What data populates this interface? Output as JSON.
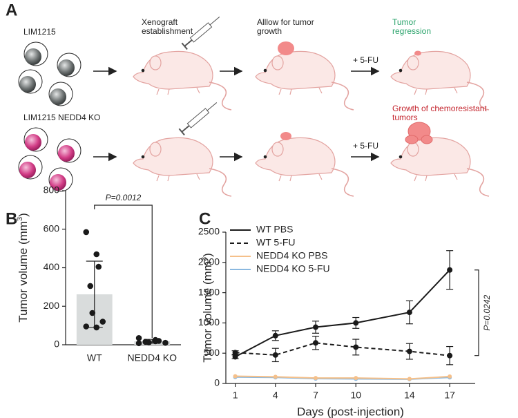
{
  "panels": {
    "a": "A",
    "b": "B",
    "c": "C"
  },
  "diagram": {
    "steps": [
      [
        "Xenograft",
        "establishment"
      ],
      [
        "Alllow for tumor",
        "growth"
      ]
    ],
    "rows": [
      {
        "cell_line": "LIM1215",
        "treatment": "+ 5-FU",
        "outcome": [
          "Tumor",
          "regression"
        ],
        "outcome_color": "#2aa36b"
      },
      {
        "cell_line": "LIM1215 NEDD4 KO",
        "treatment": "+ 5-FU",
        "outcome": [
          "Growth of chemoresistant",
          "tumors"
        ],
        "outcome_color": "#c4252e"
      }
    ]
  },
  "chart_data": [
    {
      "type": "bar",
      "ylabel": [
        "Tumor volume (mm",
        "3",
        ")"
      ],
      "categories": [
        "WT",
        "NEDD4 KO"
      ],
      "values": [
        262,
        18
      ],
      "errors": [
        172,
        10
      ],
      "points": [
        [
          585,
          470,
          405,
          305,
          165,
          120,
          95,
          90
        ],
        [
          35,
          25,
          20,
          15,
          12,
          10,
          8,
          18
        ]
      ],
      "color": "#d9dcdc",
      "point_color": "#1a1a1a",
      "ylim": [
        0,
        800
      ],
      "yticks": [
        0,
        200,
        400,
        600,
        800
      ],
      "annotation": "P=0.0012"
    },
    {
      "type": "line",
      "xlabel": "Days (post-injection)",
      "ylabel": [
        "Tumor volume (mm",
        "3",
        ")"
      ],
      "x": [
        1,
        4,
        7,
        10,
        14,
        17
      ],
      "xticks": [
        1,
        4,
        7,
        10,
        14,
        17
      ],
      "xlim": [
        0.3,
        18.9
      ],
      "ylim": [
        0,
        2500
      ],
      "yticks": [
        0,
        500,
        1000,
        1500,
        2000,
        2500
      ],
      "legend": "upper left",
      "series": [
        {
          "name": "WT PBS",
          "color": "#1a1a1a",
          "dashed": false,
          "values": [
            440,
            790,
            930,
            1000,
            1175,
            1875
          ],
          "errors": [
            30,
            80,
            100,
            90,
            190,
            320
          ]
        },
        {
          "name": "WT 5-FU",
          "color": "#1a1a1a",
          "dashed": true,
          "values": [
            510,
            470,
            670,
            600,
            530,
            460
          ],
          "errors": [
            30,
            110,
            110,
            130,
            130,
            150
          ]
        },
        {
          "name": "NEDD4 KO PBS",
          "color": "#f5c08a",
          "dashed": false,
          "values": [
            120,
            110,
            90,
            90,
            75,
            115
          ]
        },
        {
          "name": "NEDD4 KO 5-FU",
          "color": "#8ab8e0",
          "dashed": false,
          "values": [
            105,
            100,
            80,
            75,
            70,
            100
          ]
        }
      ],
      "annotation": "P=0.0242"
    }
  ]
}
